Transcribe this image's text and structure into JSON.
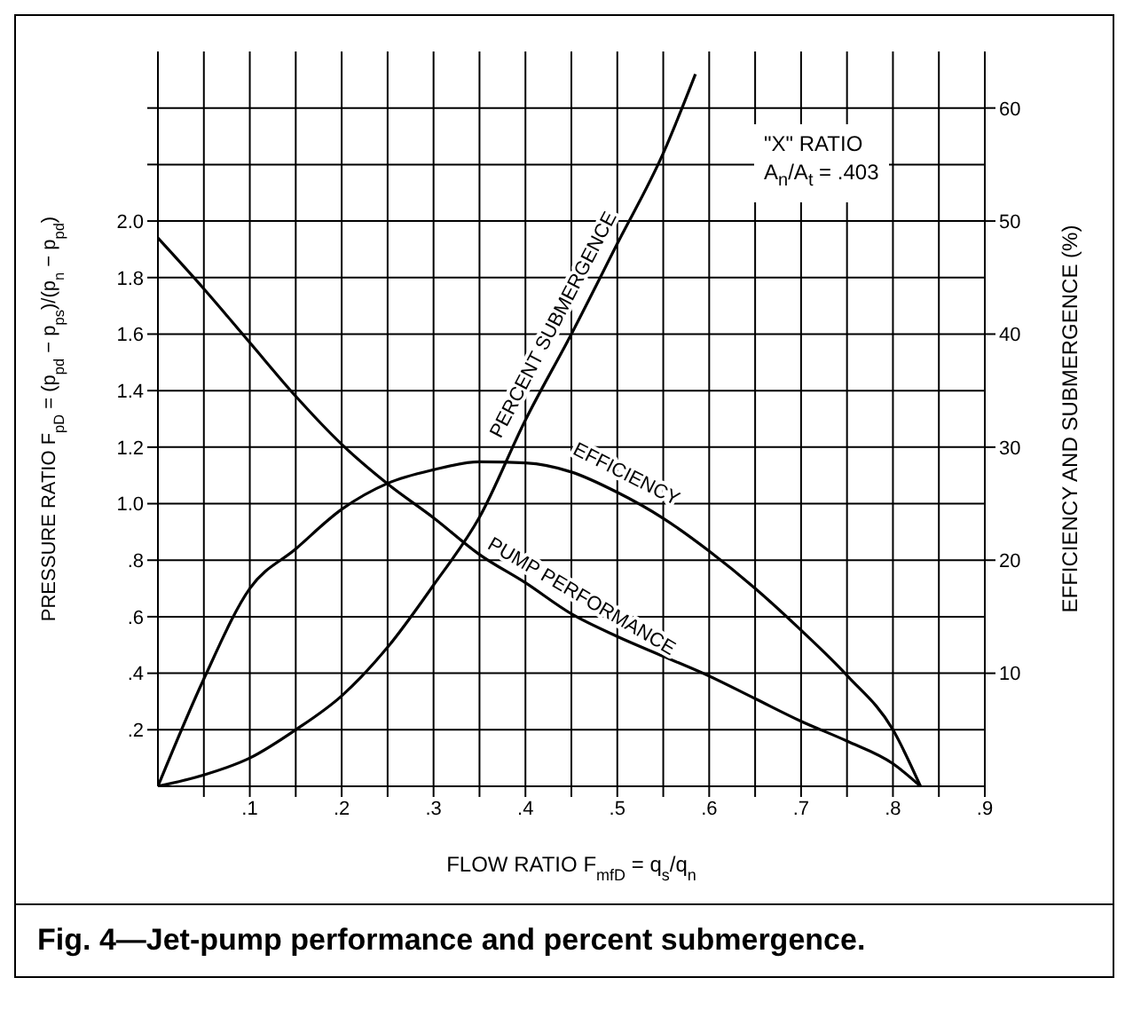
{
  "chart_data": {
    "type": "line",
    "title": "Fig. 4—Jet-pump performance and percent submergence.",
    "xlabel": "FLOW RATIO F$_{mfD}$ = q$_{s}$/q$_{n}$",
    "ylabel": "PRESSURE RATIO F$_{pD}$ = (p$_{pd}$ − p$_{ps}$)/(p$_{n}$ − p$_{pd}$)",
    "y2label": "EFFICIENCY AND SUBMERGENCE (%)",
    "annotations": [
      "\"X\" RATIO",
      "A$_{n}$/A$_{t}$ = .403"
    ],
    "xlim": [
      0,
      0.9
    ],
    "xticks": [
      {
        "value": 0.05,
        "label": null
      },
      {
        "value": 0.1,
        "label": ".1"
      },
      {
        "value": 0.15,
        "label": null
      },
      {
        "value": 0.2,
        "label": ".2"
      },
      {
        "value": 0.25,
        "label": null
      },
      {
        "value": 0.3,
        "label": ".3"
      },
      {
        "value": 0.35,
        "label": null
      },
      {
        "value": 0.4,
        "label": ".4"
      },
      {
        "value": 0.45,
        "label": null
      },
      {
        "value": 0.5,
        "label": ".5"
      },
      {
        "value": 0.55,
        "label": null
      },
      {
        "value": 0.6,
        "label": ".6"
      },
      {
        "value": 0.65,
        "label": null
      },
      {
        "value": 0.7,
        "label": ".7"
      },
      {
        "value": 0.75,
        "label": null
      },
      {
        "value": 0.8,
        "label": ".8"
      },
      {
        "value": 0.85,
        "label": null
      },
      {
        "value": 0.9,
        "label": ".9"
      }
    ],
    "ylim": [
      0,
      2.6
    ],
    "yticks": [
      {
        "value": 0.2,
        "label": ".2"
      },
      {
        "value": 0.4,
        "label": ".4"
      },
      {
        "value": 0.6,
        "label": ".6"
      },
      {
        "value": 0.8,
        "label": ".8"
      },
      {
        "value": 1.0,
        "label": "1.0"
      },
      1.2,
      1.4,
      1.6,
      1.8,
      {
        "value": 2.0,
        "label": "2.0"
      },
      {
        "value": 2.2,
        "label": null
      },
      {
        "value": 2.4,
        "label": null
      }
    ],
    "y2lim": [
      0,
      65
    ],
    "y2ticks": [
      10,
      20,
      30,
      40,
      50,
      60
    ],
    "grid": true,
    "series": [
      {
        "name": "PERCENT SUBMERGENCE",
        "color": "#000000",
        "axis": "y2",
        "x": [
          0,
          0.05,
          0.1,
          0.15,
          0.2,
          0.25,
          0.3,
          0.35,
          0.4,
          0.45,
          0.5,
          0.55,
          0.585
        ],
        "values": [
          0,
          1,
          2.5,
          5,
          8,
          12.3,
          17.8,
          23.8,
          32.4,
          40,
          48,
          56,
          63
        ]
      },
      {
        "name": "EFFICIENCY",
        "color": "#000000",
        "axis": "y2",
        "x": [
          0,
          0.05,
          0.1,
          0.15,
          0.2,
          0.25,
          0.3,
          0.35,
          0.4,
          0.45,
          0.5,
          0.55,
          0.6,
          0.65,
          0.7,
          0.75,
          0.8,
          0.83
        ],
        "values": [
          0,
          9.5,
          17.5,
          21,
          24.5,
          26.8,
          28,
          28.7,
          28.6,
          27.8,
          26,
          23.7,
          20.8,
          17.5,
          13.8,
          9.8,
          5,
          0
        ]
      },
      {
        "name": "PUMP PERFORMANCE",
        "color": "#000000",
        "axis": "y",
        "x": [
          0,
          0.05,
          0.1,
          0.15,
          0.2,
          0.25,
          0.3,
          0.35,
          0.4,
          0.45,
          0.5,
          0.55,
          0.6,
          0.65,
          0.7,
          0.75,
          0.8,
          0.83
        ],
        "values": [
          1.94,
          1.76,
          1.57,
          1.38,
          1.21,
          1.07,
          0.95,
          0.82,
          0.72,
          0.61,
          0.53,
          0.46,
          0.39,
          0.31,
          0.23,
          0.16,
          0.08,
          0
        ]
      }
    ]
  }
}
